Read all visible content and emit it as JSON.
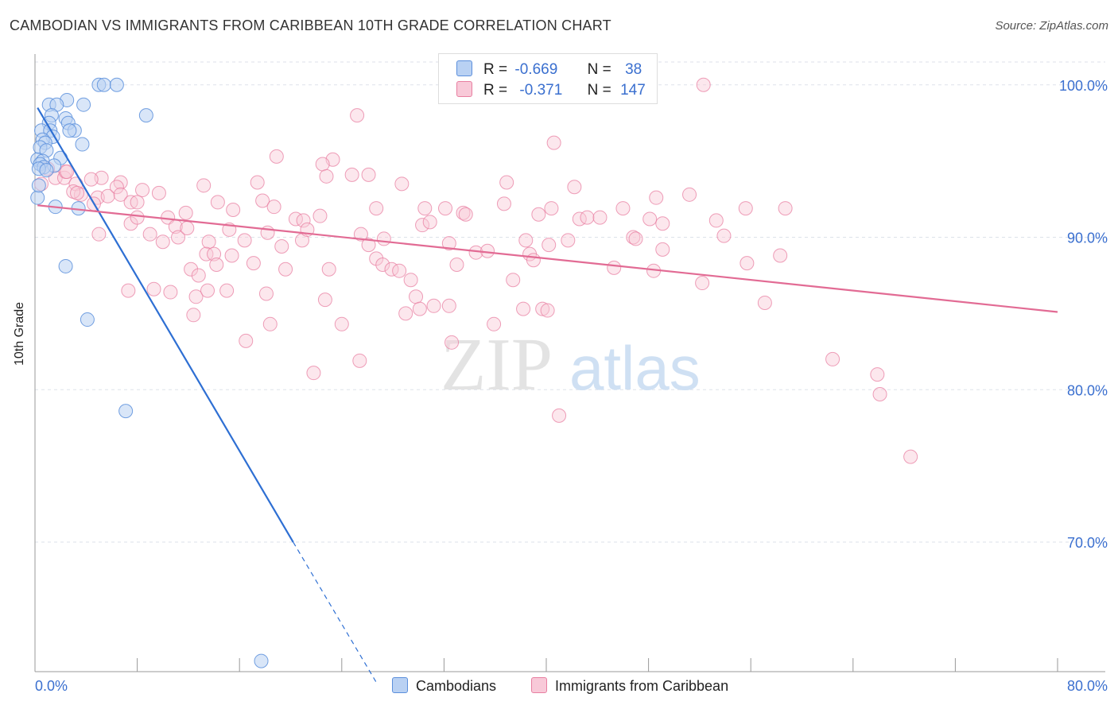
{
  "title": "CAMBODIAN VS IMMIGRANTS FROM CARIBBEAN 10TH GRADE CORRELATION CHART",
  "source": "Source: ZipAtlas.com",
  "watermark": {
    "zip": "ZIP",
    "atlas": "atlas"
  },
  "colors": {
    "blue": "#5b8fdc",
    "blue_fill": "#b9d1f3",
    "blue_line": "#2e6fd3",
    "pink": "#e87fa1",
    "pink_fill": "#f8c9d8",
    "pink_line": "#e26b94",
    "grid": "#dde2ea"
  },
  "legend": {
    "rows": [
      {
        "r_label": "R =",
        "r_value": "-0.669",
        "n_label": "N =",
        "n_value": "38"
      },
      {
        "r_label": "R =",
        "r_value": "-0.371",
        "n_label": "N =",
        "n_value": "147"
      }
    ]
  },
  "bottom_legend": [
    "Cambodians",
    "Immigrants from Caribbean"
  ],
  "chart_data": {
    "type": "scatter",
    "title": "CAMBODIAN VS IMMIGRANTS FROM CARIBBEAN 10TH GRADE CORRELATION CHART",
    "xlabel": "",
    "ylabel": "10th Grade",
    "xlim": [
      0,
      80
    ],
    "ylim": [
      61.5,
      101.5
    ],
    "x_tick_labels": [
      "0.0%",
      "80.0%"
    ],
    "y_ticks": [
      70,
      80,
      90,
      100
    ],
    "y_tick_labels": [
      "70.0%",
      "80.0%",
      "90.0%",
      "100.0%"
    ],
    "grid": true,
    "legend_position": "top-center",
    "series": [
      {
        "name": "Cambodians",
        "r": -0.669,
        "n": 38,
        "trend": {
          "x": [
            0.2,
            20.2
          ],
          "y": [
            98.5,
            70.0
          ],
          "dashed_to": [
            26.7,
            60.8
          ]
        },
        "points": [
          [
            5.0,
            100.0
          ],
          [
            5.4,
            100.0
          ],
          [
            6.4,
            100.0
          ],
          [
            2.5,
            99.0
          ],
          [
            1.1,
            98.7
          ],
          [
            1.7,
            98.7
          ],
          [
            3.8,
            98.7
          ],
          [
            8.7,
            98.0
          ],
          [
            1.3,
            98.0
          ],
          [
            2.4,
            97.8
          ],
          [
            1.1,
            97.5
          ],
          [
            2.6,
            97.5
          ],
          [
            0.5,
            97.0
          ],
          [
            1.2,
            97.0
          ],
          [
            3.1,
            97.0
          ],
          [
            2.7,
            97.0
          ],
          [
            1.4,
            96.6
          ],
          [
            0.6,
            96.4
          ],
          [
            0.8,
            96.2
          ],
          [
            3.7,
            96.1
          ],
          [
            0.4,
            95.9
          ],
          [
            0.9,
            95.7
          ],
          [
            2.0,
            95.2
          ],
          [
            0.2,
            95.1
          ],
          [
            0.6,
            95.0
          ],
          [
            0.4,
            94.8
          ],
          [
            1.5,
            94.7
          ],
          [
            0.7,
            94.6
          ],
          [
            0.3,
            94.5
          ],
          [
            0.9,
            94.4
          ],
          [
            0.2,
            92.6
          ],
          [
            1.6,
            92.0
          ],
          [
            3.4,
            91.9
          ],
          [
            2.4,
            88.1
          ],
          [
            4.1,
            84.6
          ],
          [
            7.1,
            78.6
          ],
          [
            17.7,
            62.2
          ],
          [
            0.3,
            93.4
          ]
        ]
      },
      {
        "name": "Immigrants from Caribbean",
        "r": -0.371,
        "n": 147,
        "trend": {
          "x": [
            0.2,
            80.0
          ],
          "y": [
            92.1,
            85.1
          ]
        },
        "points": [
          [
            52.3,
            100.0
          ],
          [
            25.2,
            98.0
          ],
          [
            40.6,
            96.2
          ],
          [
            18.9,
            95.3
          ],
          [
            23.3,
            95.1
          ],
          [
            22.5,
            94.8
          ],
          [
            24.8,
            94.1
          ],
          [
            26.1,
            94.1
          ],
          [
            36.9,
            93.6
          ],
          [
            42.2,
            93.3
          ],
          [
            28.7,
            93.5
          ],
          [
            17.4,
            93.6
          ],
          [
            13.2,
            93.4
          ],
          [
            6.7,
            93.6
          ],
          [
            5.2,
            93.9
          ],
          [
            4.4,
            93.8
          ],
          [
            1.6,
            93.9
          ],
          [
            2.3,
            93.9
          ],
          [
            0.5,
            93.5
          ],
          [
            1.0,
            94.5
          ],
          [
            2.4,
            94.3
          ],
          [
            3.2,
            93.5
          ],
          [
            3.6,
            92.8
          ],
          [
            3.0,
            93.0
          ],
          [
            4.9,
            92.6
          ],
          [
            5.7,
            92.7
          ],
          [
            6.4,
            93.3
          ],
          [
            6.7,
            92.8
          ],
          [
            8.4,
            93.1
          ],
          [
            9.7,
            92.9
          ],
          [
            7.5,
            92.3
          ],
          [
            8.0,
            92.3
          ],
          [
            10.4,
            91.3
          ],
          [
            11.8,
            91.6
          ],
          [
            14.3,
            92.3
          ],
          [
            15.5,
            91.8
          ],
          [
            17.8,
            92.4
          ],
          [
            18.7,
            92.0
          ],
          [
            20.4,
            91.2
          ],
          [
            22.3,
            91.4
          ],
          [
            21.0,
            91.1
          ],
          [
            26.7,
            91.9
          ],
          [
            30.5,
            91.9
          ],
          [
            32.1,
            91.9
          ],
          [
            33.5,
            91.6
          ],
          [
            36.7,
            92.2
          ],
          [
            40.4,
            91.9
          ],
          [
            42.6,
            91.2
          ],
          [
            43.2,
            91.3
          ],
          [
            46.0,
            91.9
          ],
          [
            48.1,
            91.2
          ],
          [
            49.1,
            90.9
          ],
          [
            53.3,
            91.1
          ],
          [
            55.6,
            91.9
          ],
          [
            58.7,
            91.9
          ],
          [
            48.6,
            92.6
          ],
          [
            51.2,
            92.8
          ],
          [
            2.5,
            94.3
          ],
          [
            5.0,
            90.2
          ],
          [
            7.5,
            90.9
          ],
          [
            8.0,
            91.3
          ],
          [
            9.0,
            90.2
          ],
          [
            11.0,
            90.7
          ],
          [
            11.2,
            90.0
          ],
          [
            11.9,
            90.6
          ],
          [
            13.6,
            89.7
          ],
          [
            15.2,
            90.5
          ],
          [
            16.4,
            89.8
          ],
          [
            18.2,
            90.3
          ],
          [
            19.3,
            89.4
          ],
          [
            20.9,
            89.8
          ],
          [
            21.3,
            90.5
          ],
          [
            25.5,
            90.2
          ],
          [
            26.1,
            89.5
          ],
          [
            27.3,
            89.9
          ],
          [
            30.3,
            90.8
          ],
          [
            32.4,
            89.6
          ],
          [
            34.5,
            89.0
          ],
          [
            35.4,
            89.1
          ],
          [
            38.4,
            89.8
          ],
          [
            40.2,
            89.5
          ],
          [
            41.7,
            89.8
          ],
          [
            46.8,
            90.0
          ],
          [
            47.0,
            89.9
          ],
          [
            53.9,
            90.1
          ],
          [
            10.0,
            89.7
          ],
          [
            13.4,
            88.9
          ],
          [
            14.0,
            88.9
          ],
          [
            15.4,
            88.8
          ],
          [
            14.2,
            88.2
          ],
          [
            12.2,
            87.9
          ],
          [
            12.8,
            87.5
          ],
          [
            17.1,
            88.3
          ],
          [
            19.6,
            87.9
          ],
          [
            23.0,
            87.9
          ],
          [
            26.7,
            88.6
          ],
          [
            27.2,
            88.2
          ],
          [
            27.9,
            87.9
          ],
          [
            28.5,
            87.8
          ],
          [
            29.4,
            87.2
          ],
          [
            33.0,
            88.2
          ],
          [
            37.4,
            87.2
          ],
          [
            38.7,
            88.9
          ],
          [
            39.0,
            88.5
          ],
          [
            45.3,
            88.0
          ],
          [
            48.4,
            87.8
          ],
          [
            52.2,
            87.0
          ],
          [
            55.7,
            88.3
          ],
          [
            58.3,
            88.8
          ],
          [
            7.3,
            86.5
          ],
          [
            9.3,
            86.6
          ],
          [
            10.6,
            86.4
          ],
          [
            12.6,
            86.1
          ],
          [
            13.5,
            86.5
          ],
          [
            15.0,
            86.5
          ],
          [
            18.1,
            86.3
          ],
          [
            22.7,
            85.9
          ],
          [
            29.8,
            86.1
          ],
          [
            31.2,
            85.5
          ],
          [
            32.4,
            85.5
          ],
          [
            35.9,
            84.3
          ],
          [
            38.2,
            85.3
          ],
          [
            39.7,
            85.3
          ],
          [
            40.1,
            85.2
          ],
          [
            49.1,
            89.2
          ],
          [
            57.1,
            85.7
          ],
          [
            12.4,
            84.9
          ],
          [
            16.5,
            83.2
          ],
          [
            18.4,
            84.3
          ],
          [
            24.0,
            84.3
          ],
          [
            29.0,
            85.0
          ],
          [
            30.1,
            85.3
          ],
          [
            32.6,
            83.1
          ],
          [
            21.8,
            81.1
          ],
          [
            25.4,
            81.9
          ],
          [
            41.0,
            78.3
          ],
          [
            62.4,
            82.0
          ],
          [
            65.9,
            81.0
          ],
          [
            66.1,
            79.7
          ],
          [
            68.5,
            75.6
          ],
          [
            3.3,
            92.9
          ],
          [
            4.6,
            92.2
          ],
          [
            22.8,
            94.0
          ],
          [
            30.9,
            91.0
          ],
          [
            33.7,
            91.5
          ],
          [
            39.4,
            91.5
          ],
          [
            44.2,
            91.3
          ]
        ]
      }
    ]
  }
}
